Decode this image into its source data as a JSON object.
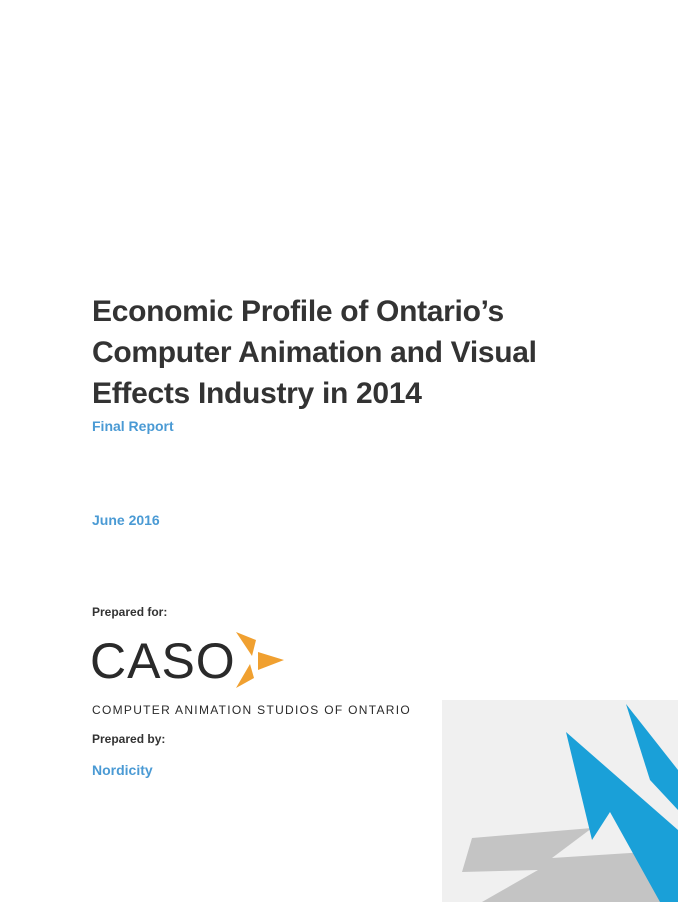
{
  "document": {
    "title_lines": [
      "Economic Profile of Ontario’s",
      "Computer Animation and Visual",
      "Effects Industry in 2014"
    ],
    "subtitle": "Final Report",
    "date": "June 2016",
    "prepared_for_label": "Prepared for:",
    "prepared_by_label": "Prepared by:",
    "preparer": "Nordicity"
  },
  "logo": {
    "wordmark": "CASO",
    "tagline": "COMPUTER ANIMATION STUDIOS OF ONTARIO",
    "icon": "caso-emblem-icon"
  },
  "decoration": {
    "icon": "nordicity-corner-graphic"
  },
  "colors": {
    "title": "#333333",
    "accent_blue": "#4a9ad4",
    "logo_orange": "#f0a030",
    "graphic_blue": "#1aa0d8",
    "graphic_grey": "#c4c4c4",
    "graphic_bg": "#f0f0f0"
  }
}
